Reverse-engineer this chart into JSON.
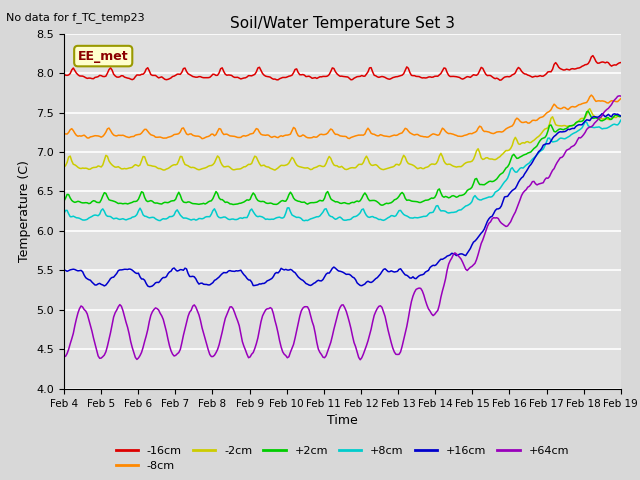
{
  "title": "Soil/Water Temperature Set 3",
  "xlabel": "Time",
  "ylabel": "Temperature (C)",
  "ylim": [
    4.0,
    8.5
  ],
  "yticks": [
    4.0,
    4.5,
    5.0,
    5.5,
    6.0,
    6.5,
    7.0,
    7.5,
    8.0,
    8.5
  ],
  "xtick_labels": [
    "Feb 4",
    "Feb 5",
    "Feb 6",
    "Feb 7",
    "Feb 8",
    "Feb 9",
    "Feb 10",
    "Feb 11",
    "Feb 12",
    "Feb 13",
    "Feb 14",
    "Feb 15",
    "Feb 16",
    "Feb 17",
    "Feb 18",
    "Feb 19"
  ],
  "no_data_text": "No data for f_TC_temp23",
  "station_label": "EE_met",
  "bg_color": "#e0e0e0",
  "series": [
    {
      "label": "-16cm",
      "color": "#dd0000"
    },
    {
      "label": "-8cm",
      "color": "#ff8800"
    },
    {
      "label": "-2cm",
      "color": "#cccc00"
    },
    {
      "label": "+2cm",
      "color": "#00cc00"
    },
    {
      "label": "+8cm",
      "color": "#00cccc"
    },
    {
      "label": "+16cm",
      "color": "#0000cc"
    },
    {
      "label": "+64cm",
      "color": "#9900bb"
    }
  ],
  "figsize": [
    6.4,
    4.8
  ],
  "dpi": 100
}
